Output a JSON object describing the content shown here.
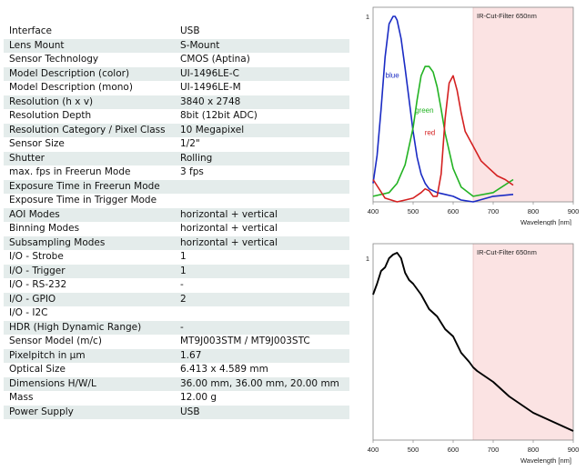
{
  "specs": [
    {
      "label": "Interface",
      "value": "USB"
    },
    {
      "label": "Lens Mount",
      "value": "S-Mount"
    },
    {
      "label": "Sensor Technology",
      "value": "CMOS (Aptina)"
    },
    {
      "label": "Model Description (color)",
      "value": "UI-1496LE-C"
    },
    {
      "label": "Model Description (mono)",
      "value": "UI-1496LE-M"
    },
    {
      "label": "Resolution (h x v)",
      "value": "3840 x 2748"
    },
    {
      "label": "Resolution Depth",
      "value": "8bit (12bit ADC)"
    },
    {
      "label": "Resolution Category / Pixel Class",
      "value": "10 Megapixel"
    },
    {
      "label": "Sensor Size",
      "value": "1/2\""
    },
    {
      "label": "Shutter",
      "value": "Rolling"
    },
    {
      "label": "max. fps in Freerun Mode",
      "value": "3 fps"
    },
    {
      "label": "Exposure Time in Freerun Mode",
      "value": ""
    },
    {
      "label": "Exposure Time in Trigger Mode",
      "value": ""
    },
    {
      "label": "AOI Modes",
      "value": "horizontal + vertical"
    },
    {
      "label": "Binning Modes",
      "value": "horizontal + vertical"
    },
    {
      "label": "Subsampling Modes",
      "value": "horizontal + vertical"
    },
    {
      "label": "I/O - Strobe",
      "value": "1"
    },
    {
      "label": "I/O - Trigger",
      "value": "1"
    },
    {
      "label": "I/O - RS-232",
      "value": "-"
    },
    {
      "label": "I/O - GPIO",
      "value": "2"
    },
    {
      "label": "I/O - I2C",
      "value": ""
    },
    {
      "label": "HDR (High Dynamic Range)",
      "value": "-"
    },
    {
      "label": "Sensor Model (m/c)",
      "value": "MT9J003STM / MT9J003STC"
    },
    {
      "label": "Pixelpitch in µm",
      "value": "1.67"
    },
    {
      "label": "Optical Size",
      "value": "6.413 x 4.589 mm"
    },
    {
      "label": "Dimensions H/W/L",
      "value": "36.00 mm, 36.00 mm, 20.00 mm"
    },
    {
      "label": "Mass",
      "value": "12.00 g"
    },
    {
      "label": "Power Supply",
      "value": "USB"
    }
  ],
  "chart_data": [
    {
      "type": "line",
      "title": "",
      "xlabel": "Wavelength [nm]",
      "ylabel": "",
      "xlim": [
        400,
        900
      ],
      "ylim": [
        0,
        1
      ],
      "x_ticks": [
        400,
        500,
        600,
        700,
        800,
        900
      ],
      "y_tick_label": "1",
      "shaded_region": {
        "from": 650,
        "to": 900,
        "label": "IR-Cut-Filter 650nm",
        "color": "#fbe3e3"
      },
      "series": [
        {
          "name": "blue",
          "color": "#1a2bc4",
          "x": [
            400,
            410,
            420,
            430,
            440,
            450,
            455,
            460,
            470,
            480,
            490,
            500,
            510,
            520,
            530,
            540,
            550,
            560,
            570,
            580,
            600,
            620,
            650,
            700,
            750
          ],
          "y": [
            0.1,
            0.25,
            0.5,
            0.78,
            0.96,
            1.0,
            1.0,
            0.98,
            0.88,
            0.72,
            0.55,
            0.38,
            0.24,
            0.15,
            0.1,
            0.07,
            0.06,
            0.05,
            0.045,
            0.04,
            0.03,
            0.01,
            0.0,
            0.03,
            0.04
          ]
        },
        {
          "name": "green",
          "color": "#23b323",
          "x": [
            400,
            440,
            460,
            480,
            500,
            510,
            520,
            530,
            540,
            550,
            560,
            570,
            580,
            600,
            620,
            650,
            700,
            750
          ],
          "y": [
            0.03,
            0.05,
            0.1,
            0.2,
            0.4,
            0.55,
            0.68,
            0.73,
            0.73,
            0.7,
            0.62,
            0.5,
            0.37,
            0.18,
            0.08,
            0.03,
            0.05,
            0.12
          ]
        },
        {
          "name": "red",
          "color": "#d42020",
          "x": [
            400,
            430,
            460,
            480,
            500,
            520,
            530,
            540,
            550,
            560,
            570,
            580,
            590,
            600,
            610,
            620,
            630,
            650,
            670,
            690,
            710,
            730,
            750
          ],
          "y": [
            0.12,
            0.02,
            0.0,
            0.01,
            0.02,
            0.05,
            0.07,
            0.06,
            0.03,
            0.03,
            0.15,
            0.45,
            0.64,
            0.68,
            0.6,
            0.48,
            0.38,
            0.3,
            0.22,
            0.18,
            0.14,
            0.12,
            0.09
          ]
        }
      ]
    },
    {
      "type": "line",
      "title": "",
      "xlabel": "Wavelength [nm]",
      "ylabel": "",
      "xlim": [
        400,
        900
      ],
      "ylim": [
        0,
        1
      ],
      "x_ticks": [
        400,
        500,
        600,
        700,
        800,
        900
      ],
      "y_tick_label": "1",
      "shaded_region": {
        "from": 650,
        "to": 900,
        "label": "IR-Cut-Filter 650nm",
        "color": "#fbe3e3"
      },
      "series": [
        {
          "name": "",
          "color": "#000000",
          "x": [
            400,
            410,
            420,
            430,
            440,
            450,
            460,
            470,
            480,
            490,
            500,
            520,
            540,
            560,
            580,
            600,
            620,
            640,
            650,
            660,
            680,
            700,
            720,
            740,
            760,
            780,
            800,
            820,
            850,
            870,
            900
          ],
          "y": [
            0.8,
            0.86,
            0.93,
            0.95,
            1.0,
            1.02,
            1.03,
            1.0,
            0.92,
            0.88,
            0.86,
            0.8,
            0.72,
            0.68,
            0.61,
            0.57,
            0.48,
            0.43,
            0.4,
            0.38,
            0.35,
            0.32,
            0.28,
            0.24,
            0.21,
            0.18,
            0.15,
            0.13,
            0.1,
            0.08,
            0.05
          ]
        }
      ]
    }
  ]
}
